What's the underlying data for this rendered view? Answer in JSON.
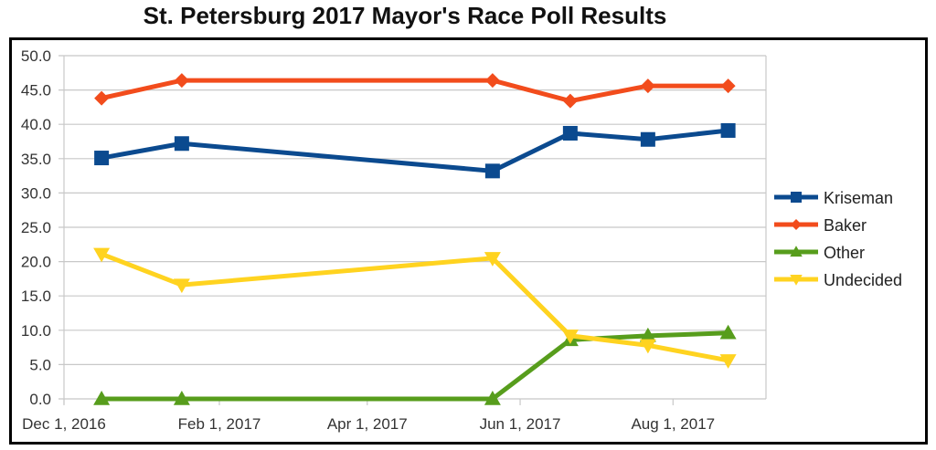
{
  "chart_data": {
    "type": "line",
    "title": "St. Petersburg 2017 Mayor's Race Poll Results",
    "xlabel": "",
    "ylabel": "",
    "x_dates": [
      "2016-12-16",
      "2017-01-17",
      "2017-05-21",
      "2017-06-21",
      "2017-07-22",
      "2017-08-23"
    ],
    "x_day_offsets": [
      15,
      47,
      171,
      202,
      233,
      265
    ],
    "xlim_days": [
      0,
      280
    ],
    "x_ticks": [
      {
        "label": "Dec 1, 2016",
        "day": 0
      },
      {
        "label": "Feb 1, 2017",
        "day": 62
      },
      {
        "label": "Apr 1, 2017",
        "day": 121
      },
      {
        "label": "Jun 1, 2017",
        "day": 182
      },
      {
        "label": "Aug 1, 2017",
        "day": 243
      }
    ],
    "ylim": [
      0,
      50
    ],
    "y_ticks": [
      "0.0",
      "5.0",
      "10.0",
      "15.0",
      "20.0",
      "25.0",
      "30.0",
      "35.0",
      "40.0",
      "45.0",
      "50.0"
    ],
    "grid": true,
    "legend_position": "right",
    "series": [
      {
        "name": "Kriseman",
        "color": "#0b4a8f",
        "marker": "square",
        "values": [
          35.1,
          37.2,
          33.2,
          38.7,
          37.8,
          39.1
        ]
      },
      {
        "name": "Baker",
        "color": "#f24c1c",
        "marker": "diamond",
        "values": [
          43.8,
          46.4,
          46.4,
          43.4,
          45.6,
          45.6
        ]
      },
      {
        "name": "Other",
        "color": "#579d1c",
        "marker": "triangle-up",
        "values": [
          0.0,
          0.0,
          0.0,
          8.6,
          9.2,
          9.6
        ]
      },
      {
        "name": "Undecided",
        "color": "#ffd320",
        "marker": "triangle-down",
        "values": [
          21.1,
          16.6,
          20.5,
          9.2,
          7.8,
          5.6
        ]
      }
    ]
  }
}
